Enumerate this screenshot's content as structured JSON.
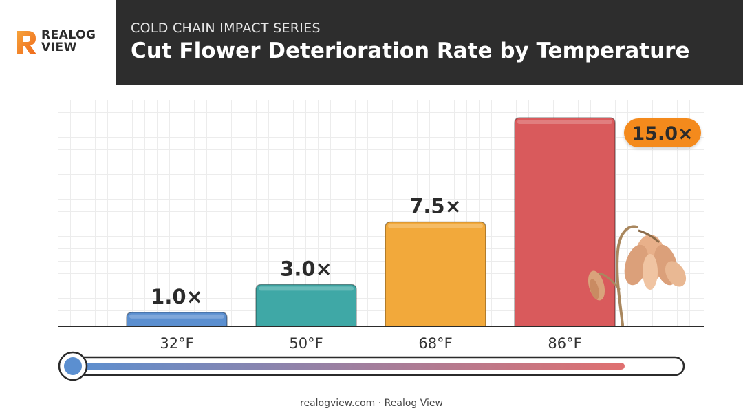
{
  "brand": {
    "logo_text_line1": "REALOG",
    "logo_text_line2": "VIEW",
    "accent_color": "#f47c20"
  },
  "header": {
    "subtitle": "COLD CHAIN IMPACT SERIES",
    "title": "Cut Flower Deterioration Rate by Temperature"
  },
  "chart_data": {
    "type": "bar",
    "categories": [
      "32°F",
      "50°F",
      "68°F",
      "86°F"
    ],
    "values": [
      1.0,
      3.0,
      7.5,
      15.0
    ],
    "data_labels": [
      "1.0×",
      "3.0×",
      "7.5×",
      "15.0×"
    ],
    "colors": [
      "#5b8fd0",
      "#3fa8a6",
      "#f2a93b",
      "#d95a5c"
    ],
    "highlight_label_color": "#f48a1e",
    "title": "Cut Flower Deterioration Rate by Temperature",
    "xlabel": "",
    "ylabel": "",
    "ylim": [
      0,
      15.0
    ],
    "grid": true,
    "legend": "none"
  },
  "thermometer": {
    "level": 0.92,
    "start_color": "#5b8fd0",
    "end_color": "#e07070"
  },
  "footer": {
    "text": "realogview.com · Realog View"
  },
  "decorations": {
    "wilted_flower_icon": "wilted-flower-icon"
  }
}
